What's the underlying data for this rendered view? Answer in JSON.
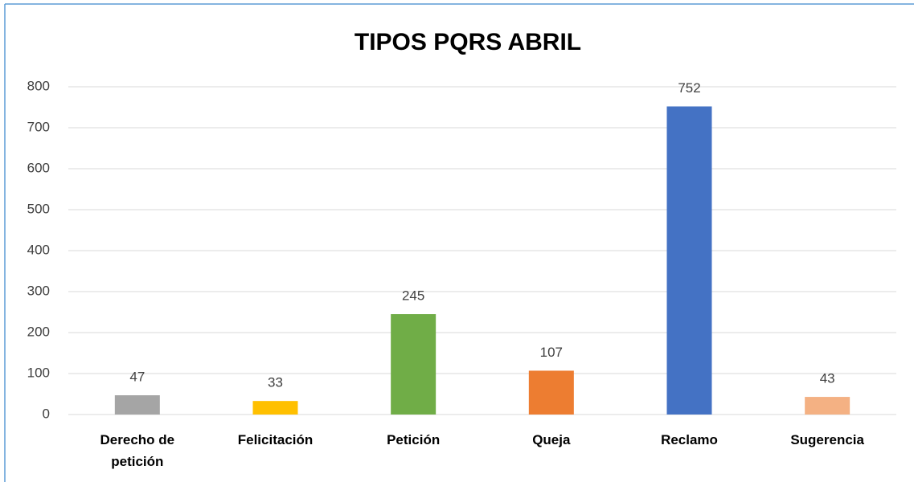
{
  "chart_data": {
    "type": "bar",
    "title": "TIPOS PQRS ABRIL",
    "categories": [
      "Derecho de petición",
      "Felicitación",
      "Petición",
      "Queja",
      "Reclamo",
      "Sugerencia"
    ],
    "values": [
      47,
      33,
      245,
      107,
      752,
      43
    ],
    "colors": [
      "#a5a5a5",
      "#ffc000",
      "#70ad47",
      "#ed7d31",
      "#4472c4",
      "#f4b183"
    ],
    "ylim": [
      0,
      800
    ],
    "yticks": [
      0,
      100,
      200,
      300,
      400,
      500,
      600,
      700,
      800
    ],
    "grid": true
  }
}
